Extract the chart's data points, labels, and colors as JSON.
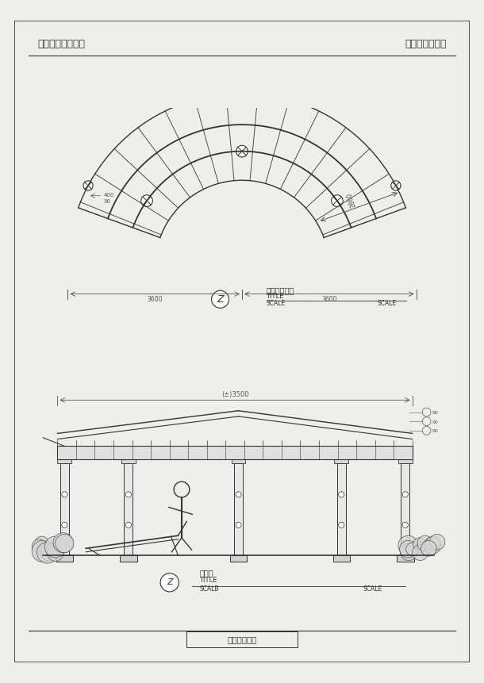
{
  "title_left": "现代景观建筑小品",
  "title_right": "悬挑木桁条花架",
  "plan_label": "平面布置总图",
  "plan_title": "TITLE",
  "plan_scale_left": "SCALE",
  "plan_scale_right": "SCALE",
  "elev_label": "正面图",
  "elev_title": "TITLE",
  "elev_scale_left": "SCALB",
  "elev_scale_right": "SCALE",
  "bottom_label": "－花架系列－",
  "bg_color": "#f0eeea",
  "paper_color": "#ffffff",
  "line_color": "#333333",
  "dim_color": "#555555"
}
